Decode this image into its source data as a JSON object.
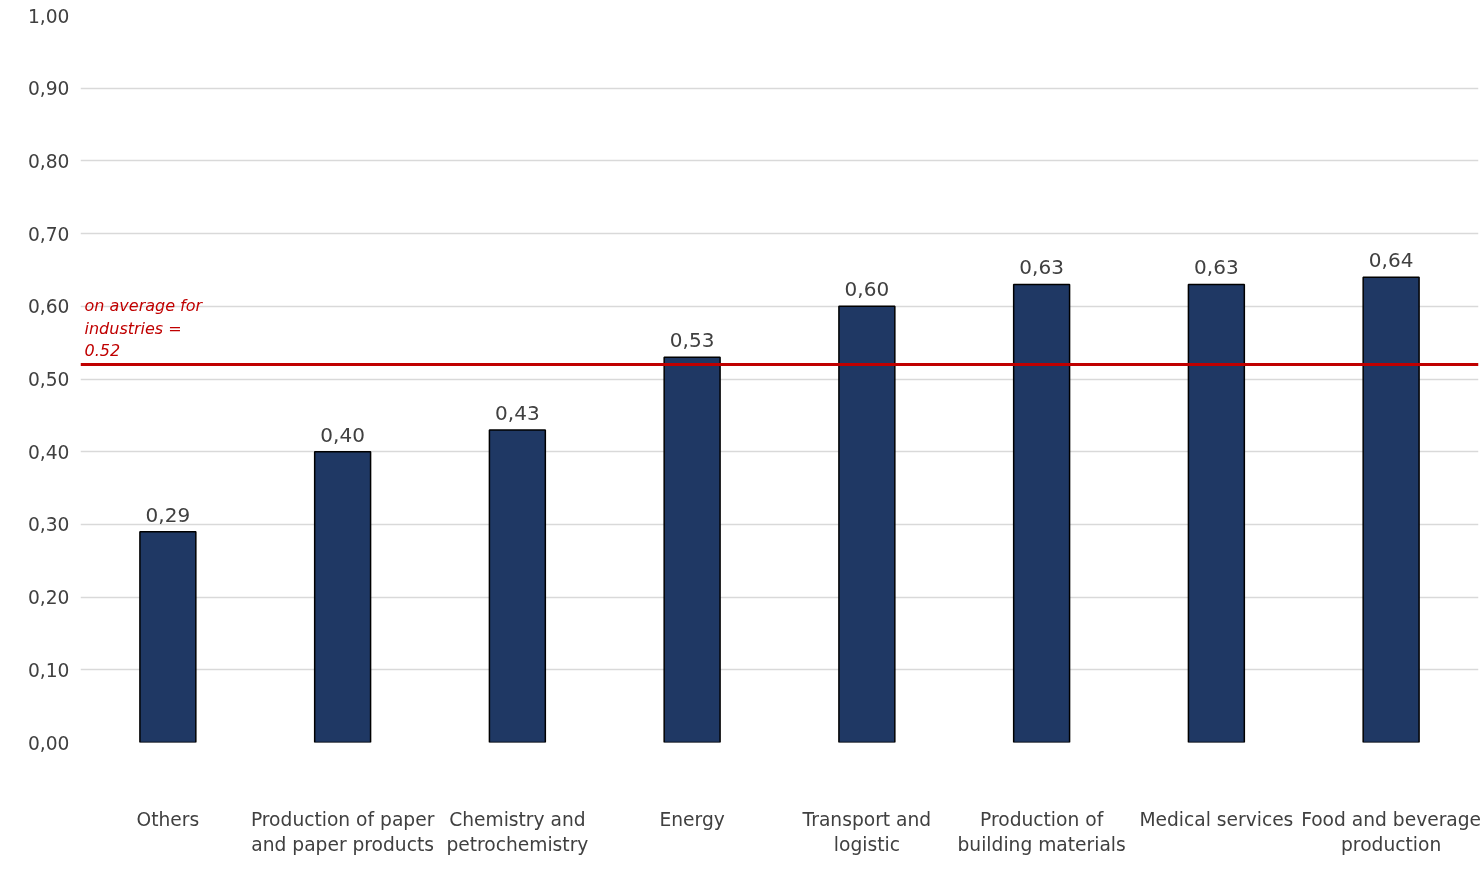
{
  "chart_data": {
    "type": "bar",
    "categories": [
      "Others",
      "Production of paper and paper products",
      "Chemistry and petrochemistry",
      "Energy",
      "Transport and logistic",
      "Production of building materials",
      "Medical services",
      "Food and beverage production"
    ],
    "values": [
      0.29,
      0.4,
      0.43,
      0.53,
      0.6,
      0.63,
      0.63,
      0.64
    ],
    "value_labels": [
      "0,29",
      "0,40",
      "0,43",
      "0,53",
      "0,60",
      "0,63",
      "0,63",
      "0,64"
    ],
    "color": "#1f3864",
    "ylim": [
      0,
      1
    ],
    "yticks": [
      {
        "value": 0,
        "label": "0,00"
      },
      {
        "value": 0.1,
        "label": "0,10"
      },
      {
        "value": 0.2,
        "label": "0,20"
      },
      {
        "value": 0.3,
        "label": "0,30"
      },
      {
        "value": 0.4,
        "label": "0,40"
      },
      {
        "value": 0.5,
        "label": "0,50"
      },
      {
        "value": 0.6,
        "label": "0,60"
      },
      {
        "value": 0.7,
        "label": "0,70"
      },
      {
        "value": 0.8,
        "label": "0,80"
      },
      {
        "value": 0.9,
        "label": "0,90"
      },
      {
        "value": 1,
        "label": "1,00"
      }
    ],
    "grid": "y",
    "ref_lines": [
      {
        "axis": "y",
        "value": 0.52,
        "label": "on average for industries = 0.52",
        "color": "#c00000"
      }
    ]
  }
}
